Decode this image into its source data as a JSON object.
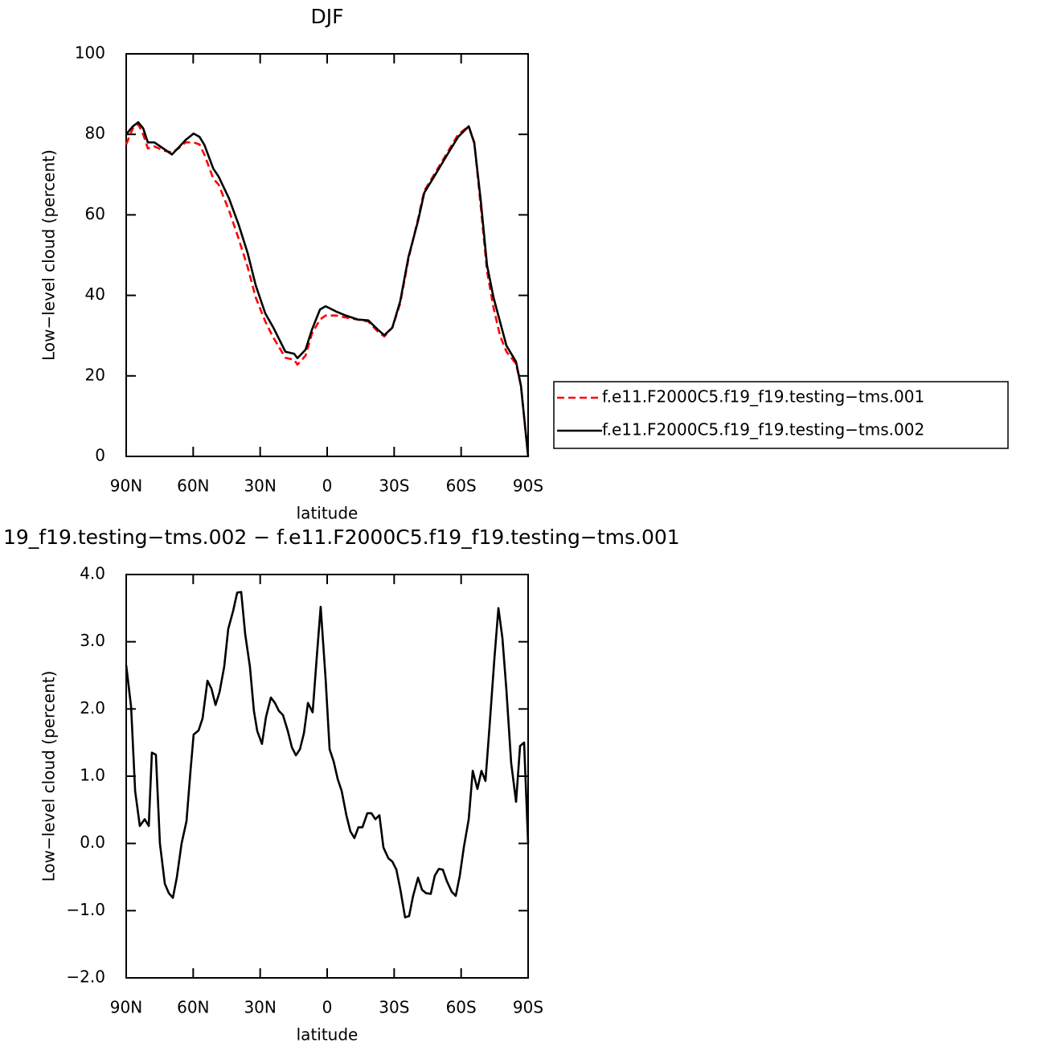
{
  "chart_data": [
    {
      "type": "line",
      "title": "DJF",
      "x_label": "latitude",
      "y_label": "Low−level cloud (percent)",
      "x": [
        90,
        87,
        84.6,
        82.4,
        80.3,
        77.4,
        73.4,
        69.5,
        66.6,
        63.4,
        59.8,
        57.2,
        55,
        51,
        48.6,
        43.9,
        39.6,
        35.6,
        32,
        27.7,
        24.1,
        18.7,
        14.8,
        13.3,
        9.7,
        6.8,
        3.2,
        0.7,
        -4,
        -8.3,
        -13.7,
        -18.4,
        -22.7,
        -25.6,
        -29.2,
        -32.7,
        -36.4,
        -40.7,
        -43.5,
        -47.9,
        -53.3,
        -58.7,
        -63.4,
        -65.9,
        -68.8,
        -71.6,
        -74.5,
        -77.4,
        -80.3,
        -84.6,
        -86.8,
        -90
      ],
      "series": [
        {
          "name": "f.e11.F2000C5.f19_f19.testing−tms.001",
          "color": "#ff0000",
          "line_style": "dashed",
          "values": [
            77.5,
            81.5,
            82.5,
            80,
            76.5,
            77,
            76,
            75.5,
            76.5,
            78,
            78,
            77.5,
            75,
            69,
            67.5,
            61,
            54,
            47,
            39.5,
            33.5,
            29.5,
            24.5,
            24,
            22.8,
            25,
            30.5,
            34,
            35,
            35,
            34.5,
            34,
            33.5,
            31,
            29.8,
            32,
            38,
            49,
            59,
            66,
            70,
            75,
            80,
            82,
            78,
            62,
            46,
            37,
            30,
            26,
            23,
            17.5,
            0
          ]
        },
        {
          "name": "f.e11.F2000C5.f19_f19.testing−tms.002",
          "color": "#000000",
          "line_style": "solid",
          "values": [
            80,
            82,
            83,
            81.5,
            78,
            78,
            76.5,
            75,
            76.7,
            78.6,
            80.2,
            79.4,
            77.4,
            71.5,
            69.5,
            64,
            57.5,
            50.5,
            42.5,
            35.5,
            32,
            26,
            25.5,
            24.4,
            26.5,
            31.5,
            36.5,
            37.3,
            36,
            35,
            34,
            33.8,
            31.5,
            30.1,
            32,
            38.5,
            49.5,
            58.5,
            65.5,
            69.5,
            74.5,
            79.4,
            82,
            77.8,
            63.5,
            47.5,
            39.5,
            33.5,
            27.5,
            23.5,
            17.5,
            0
          ]
        }
      ],
      "xlim": [
        90,
        -90
      ],
      "xticks": [
        {
          "value": 90,
          "label": "90N"
        },
        {
          "value": 60,
          "label": "60N"
        },
        {
          "value": 30,
          "label": "30N"
        },
        0,
        {
          "value": -30,
          "label": "30S"
        },
        {
          "value": -60,
          "label": "60S"
        },
        {
          "value": -90,
          "label": "90S"
        }
      ],
      "ylim": [
        0,
        100
      ],
      "yticks": [
        0,
        20,
        40,
        60,
        80,
        100
      ],
      "legend": "right"
    },
    {
      "type": "line",
      "title": "19_f19.testing−tms.002 − f.e11.F2000C5.f19_f19.testing−tms.001",
      "x_label": "latitude",
      "y_label": "Low−level cloud (percent)",
      "x": [
        90,
        87.8,
        86,
        83.9,
        81.7,
        79.9,
        78.5,
        76.7,
        74.9,
        72.7,
        70.9,
        69.1,
        67.3,
        65.2,
        63,
        61.2,
        59.8,
        57.6,
        55.8,
        53.6,
        51.8,
        50,
        48.2,
        46.1,
        44.3,
        42.1,
        40.3,
        38.5,
        36.7,
        34.6,
        32.8,
        31.3,
        29.2,
        27.4,
        25.2,
        23.4,
        21.6,
        19.8,
        17.6,
        15.8,
        14,
        12.2,
        10.4,
        8.6,
        6.5,
        4.7,
        2.9,
        0.7,
        -1.1,
        -2.9,
        -4.7,
        -6.5,
        -8.6,
        -10.4,
        -12.2,
        -14,
        -15.8,
        -18,
        -19.8,
        -21.6,
        -23.4,
        -25.2,
        -27.4,
        -29.2,
        -31,
        -32.8,
        -34.9,
        -36.7,
        -38.5,
        -40.7,
        -42.5,
        -44.3,
        -46.4,
        -48.2,
        -50,
        -51.8,
        -53.6,
        -55.8,
        -57.6,
        -59.4,
        -61.2,
        -63.4,
        -65.2,
        -67.3,
        -69.1,
        -70.9,
        -72.7,
        -74.9,
        -76.7,
        -78.5,
        -80.3,
        -82.4,
        -84.6,
        -86.4,
        -88.2,
        -90
      ],
      "series": [
        {
          "color": "#000000",
          "line_style": "solid",
          "values": [
            2.65,
            2.03,
            0.78,
            0.26,
            0.36,
            0.26,
            1.35,
            1.32,
            0,
            -0.6,
            -0.74,
            -0.81,
            -0.5,
            0,
            0.33,
            1.08,
            1.62,
            1.68,
            1.86,
            2.42,
            2.3,
            2.06,
            2.25,
            2.63,
            3.19,
            3.46,
            3.73,
            3.74,
            3.11,
            2.63,
            1.97,
            1.67,
            1.48,
            1.88,
            2.17,
            2.09,
            1.97,
            1.91,
            1.67,
            1.43,
            1.31,
            1.4,
            1.64,
            2.09,
            1.95,
            2.75,
            3.52,
            2.45,
            1.4,
            1.22,
            0.96,
            0.78,
            0.42,
            0.18,
            0.08,
            0.24,
            0.24,
            0.45,
            0.45,
            0.36,
            0.42,
            -0.06,
            -0.22,
            -0.27,
            -0.39,
            -0.69,
            -1.1,
            -1.08,
            -0.78,
            -0.51,
            -0.69,
            -0.74,
            -0.75,
            -0.48,
            -0.38,
            -0.39,
            -0.56,
            -0.72,
            -0.78,
            -0.48,
            -0.06,
            0.36,
            1.08,
            0.81,
            1.08,
            0.93,
            1.73,
            2.75,
            3.5,
            3.05,
            2.27,
            1.2,
            0.62,
            1.45,
            1.5,
            0
          ]
        }
      ],
      "xlim": [
        90,
        -90
      ],
      "xticks": [
        {
          "value": 90,
          "label": "90N"
        },
        {
          "value": 60,
          "label": "60N"
        },
        {
          "value": 30,
          "label": "30N"
        },
        0,
        {
          "value": -30,
          "label": "30S"
        },
        {
          "value": -60,
          "label": "60S"
        },
        {
          "value": -90,
          "label": "90S"
        }
      ],
      "ylim": [
        -2,
        4
      ],
      "yticks": [
        {
          "value": -2,
          "label": "−2.0"
        },
        {
          "value": -1,
          "label": "−1.0"
        },
        {
          "value": 0,
          "label": "0.0"
        },
        {
          "value": 1,
          "label": "1.0"
        },
        {
          "value": 2,
          "label": "2.0"
        },
        {
          "value": 3,
          "label": "3.0"
        },
        {
          "value": 4,
          "label": "4.0"
        }
      ]
    }
  ]
}
